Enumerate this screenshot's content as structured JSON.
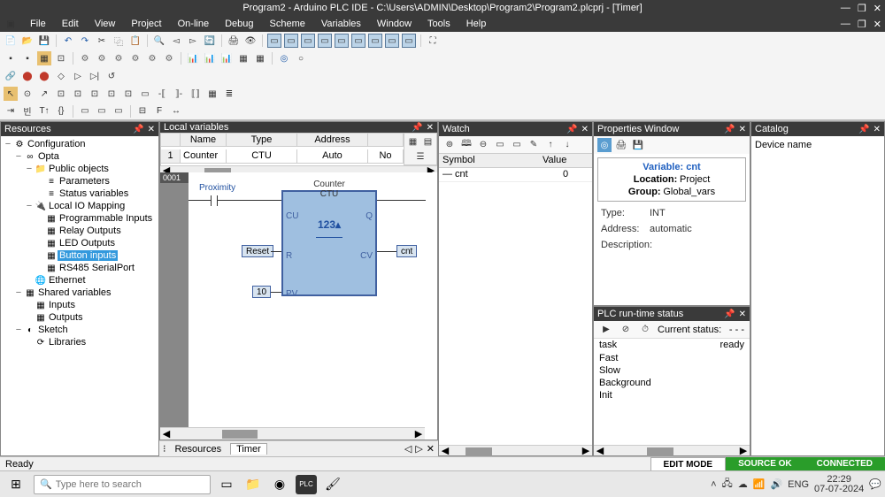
{
  "title": "Program2 - Arduino PLC IDE - C:\\Users\\ADMIN\\Desktop\\Program2\\Program2.plcprj - [Timer]",
  "menu": [
    "File",
    "Edit",
    "View",
    "Project",
    "On-line",
    "Debug",
    "Scheme",
    "Variables",
    "Window",
    "Tools",
    "Help"
  ],
  "panels": {
    "resources": "Resources",
    "local_vars": "Local variables",
    "watch": "Watch",
    "props": "Properties Window",
    "runtime": "PLC run-time status",
    "catalog": "Catalog"
  },
  "tree": [
    {
      "indent": 0,
      "toggle": "−",
      "icon": "⚙",
      "label": "Configuration"
    },
    {
      "indent": 1,
      "toggle": "−",
      "icon": "∞",
      "label": "Opta"
    },
    {
      "indent": 2,
      "toggle": "−",
      "icon": "📁",
      "label": "Public objects"
    },
    {
      "indent": 3,
      "toggle": "",
      "icon": "≡",
      "label": "Parameters"
    },
    {
      "indent": 3,
      "toggle": "",
      "icon": "≡",
      "label": "Status variables"
    },
    {
      "indent": 2,
      "toggle": "−",
      "icon": "🔌",
      "label": "Local IO Mapping"
    },
    {
      "indent": 3,
      "toggle": "",
      "icon": "▦",
      "label": "Programmable Inputs"
    },
    {
      "indent": 3,
      "toggle": "",
      "icon": "▦",
      "label": "Relay Outputs"
    },
    {
      "indent": 3,
      "toggle": "",
      "icon": "▦",
      "label": "LED Outputs"
    },
    {
      "indent": 3,
      "toggle": "",
      "icon": "▦",
      "label": "Button inputs",
      "selected": true
    },
    {
      "indent": 3,
      "toggle": "",
      "icon": "▦",
      "label": "RS485 SerialPort"
    },
    {
      "indent": 2,
      "toggle": "",
      "icon": "🌐",
      "label": "Ethernet"
    },
    {
      "indent": 1,
      "toggle": "−",
      "icon": "▦",
      "label": "Shared variables"
    },
    {
      "indent": 2,
      "toggle": "",
      "icon": "▦",
      "label": "Inputs"
    },
    {
      "indent": 2,
      "toggle": "",
      "icon": "▦",
      "label": "Outputs"
    },
    {
      "indent": 1,
      "toggle": "−",
      "icon": "◐",
      "label": "Sketch"
    },
    {
      "indent": 2,
      "toggle": "",
      "icon": "⟳",
      "label": "Libraries"
    }
  ],
  "local_vars": {
    "headers": [
      "",
      "Name",
      "Type",
      "Address",
      ""
    ],
    "row": {
      "n": "1",
      "name": "Counter",
      "type": "CTU",
      "address": "Auto",
      "extra": "No"
    }
  },
  "fbd": {
    "rung": "0001",
    "block_title": "Counter",
    "block_type": "CTU",
    "display": "123▴",
    "ports": {
      "CU": "CU",
      "R": "R",
      "PV": "PV",
      "Q": "Q",
      "CV": "CV"
    },
    "proximity": "Proximity",
    "reset": "Reset",
    "pv": "10",
    "cnt": "cnt"
  },
  "tabs": {
    "resources": "Resources",
    "timer": "Timer"
  },
  "watch": {
    "headers": {
      "symbol": "Symbol",
      "value": "Value"
    },
    "row": {
      "symbol": "— cnt",
      "value": "0"
    }
  },
  "variable_card": {
    "title": "Variable:",
    "name": "cnt",
    "loc_k": "Location:",
    "loc_v": "Project",
    "grp_k": "Group:",
    "grp_v": "Global_vars"
  },
  "props_rows": [
    {
      "k": "Type:",
      "v": "INT"
    },
    {
      "k": "Address:",
      "v": "automatic"
    },
    {
      "k": "Description:",
      "v": ""
    }
  ],
  "runtime": {
    "current_k": "Current status:",
    "current_v": "- - -",
    "headers": {
      "task": "task",
      "ready": "ready"
    },
    "rows": [
      "Fast",
      "Slow",
      "Background",
      "Init"
    ]
  },
  "catalog": {
    "hdr": "Device name"
  },
  "statusbar": {
    "ready": "Ready",
    "edit": "EDIT MODE",
    "source": "SOURCE OK",
    "connected": "CONNECTED",
    "colors": {
      "edit": "#ffffff",
      "edit_fg": "#000000",
      "source": "#2a9d2a",
      "connected": "#2a9d2a"
    }
  },
  "taskbar": {
    "search_ph": "Type here to search",
    "time": "22:29",
    "date": "07-07-2024",
    "lang": "ENG"
  }
}
